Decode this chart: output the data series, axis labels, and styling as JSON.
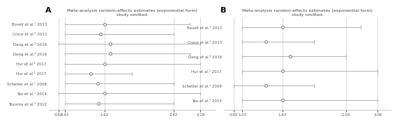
{
  "panel_A": {
    "title": "Meta-analysis random-effects estimates (exponential form)\nstudy omitted",
    "studies": [
      "Bovell et al.¹ 2013",
      "Croce et al.² 2013",
      "Deng et al.² 2016",
      "Deng et al.² 2016",
      "Hur et al.¹ 2017",
      "Hur et al.¹ 2017",
      "Schetter et al.¹ 2008",
      "Tao et al.¹ 2014",
      "Toyama et al.² 2012"
    ],
    "estimates": [
      1.62,
      1.55,
      1.72,
      1.72,
      1.62,
      1.38,
      1.5,
      1.62,
      1.52
    ],
    "ci_low": [
      0.93,
      0.93,
      0.82,
      0.93,
      0.93,
      0.93,
      0.93,
      0.82,
      0.93
    ],
    "ci_high": [
      3.1,
      2.82,
      3.29,
      3.1,
      3.29,
      2.1,
      2.82,
      3.29,
      2.82
    ],
    "xtick_vals": [
      0.82,
      0.93,
      1.62,
      2.82,
      3.29
    ],
    "xtick_labels": [
      "0.82",
      "0.93",
      "1.62",
      "2.82",
      "3.29"
    ],
    "xlim": [
      0.65,
      3.55
    ]
  },
  "panel_B": {
    "title": "Meta-analysis random-effects estimates (exponential form)\nstudy omitted",
    "studies": [
      "Bovell et al.¹ 2013",
      "Croce et al.² 2013",
      "Deng et al.² 2016",
      "Hur et al.¹ 2017",
      "Schetter et al.¹ 2008",
      "Tao et al.¹ 2014"
    ],
    "estimates": [
      1.63,
      1.38,
      1.75,
      1.63,
      1.38,
      1.63
    ],
    "ci_low": [
      1.03,
      1.03,
      1.03,
      1.03,
      0.9,
      1.03
    ],
    "ci_high": [
      2.8,
      2.1,
      2.58,
      3.06,
      2.1,
      3.06
    ],
    "xtick_vals": [
      0.9,
      1.03,
      1.63,
      2.58,
      3.06
    ],
    "xtick_labels": [
      "0.90",
      "1.03",
      "1.63",
      "2.58",
      "3.06"
    ],
    "xlim": [
      0.75,
      3.25
    ]
  },
  "line_color": "#b0b0b0",
  "marker_facecolor": "#ffffff",
  "marker_edgecolor": "#888888",
  "vline_color": "#cccccc",
  "label_color": "#555555",
  "title_color": "#444444"
}
